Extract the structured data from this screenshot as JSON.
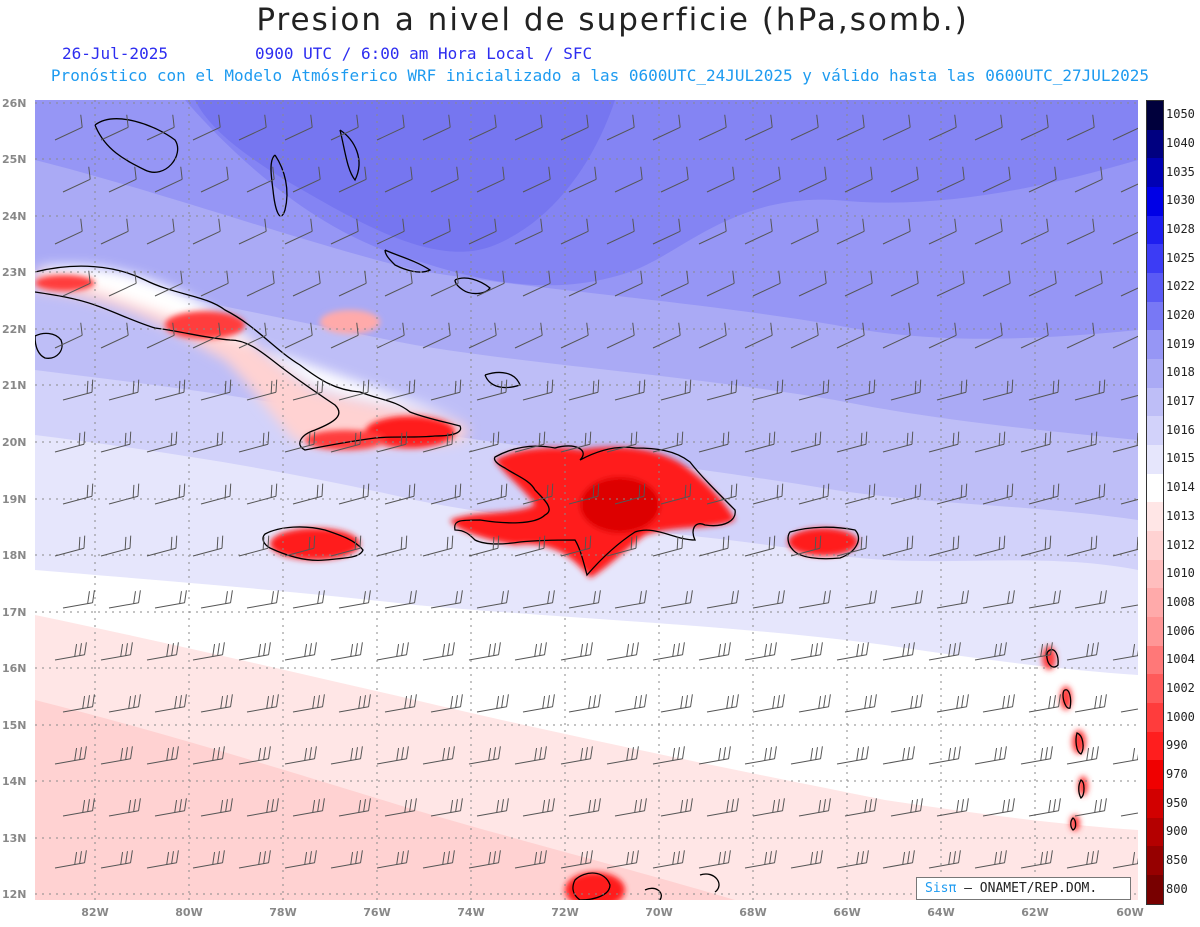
{
  "header": {
    "title": "Presion a nivel de superficie (hPa,somb.)",
    "date": "26-Jul-2025",
    "valid_time": "0900 UTC / 6:00 am Hora Local / SFC",
    "model_info": "Pronóstico con el Modelo Atmósferico WRF inicializado a las 0600UTC_24JUL2025 y válido hasta las  0600UTC_27JUL2025"
  },
  "axes": {
    "lat_labels": [
      "26N",
      "25N",
      "24N",
      "23N",
      "22N",
      "21N",
      "20N",
      "19N",
      "18N",
      "17N",
      "16N",
      "15N",
      "14N",
      "13N",
      "12N"
    ],
    "lon_labels": [
      "82W",
      "80W",
      "78W",
      "76W",
      "74W",
      "72W",
      "70W",
      "68W",
      "66W",
      "64W",
      "62W",
      "60W"
    ]
  },
  "colorbar": {
    "labels": [
      "1050",
      "1040",
      "1035",
      "1030",
      "1028",
      "1025",
      "1022",
      "1020",
      "1019",
      "1018",
      "1017",
      "1016",
      "1015",
      "1014",
      "1013",
      "1012",
      "1010",
      "1008",
      "1006",
      "1004",
      "1002",
      "1000",
      "990",
      "970",
      "950",
      "900",
      "850",
      "800"
    ],
    "colors": [
      "#00003c",
      "#000080",
      "#0000b4",
      "#0000e6",
      "#1e1ef0",
      "#3c3cf5",
      "#5a5af5",
      "#7878f5",
      "#9696f5",
      "#aaaaf5",
      "#bebef7",
      "#d2d2fa",
      "#e6e6fc",
      "#ffffff",
      "#ffe6e6",
      "#ffd2d2",
      "#ffbebe",
      "#ffaaaa",
      "#ff9696",
      "#ff7878",
      "#ff5a5a",
      "#ff3c3c",
      "#ff1e1e",
      "#f00000",
      "#d20000",
      "#b40000",
      "#960000",
      "#780000"
    ]
  },
  "credit": {
    "logo": "Sisπ",
    "text": "– ONAMET/REP.DOM."
  }
}
